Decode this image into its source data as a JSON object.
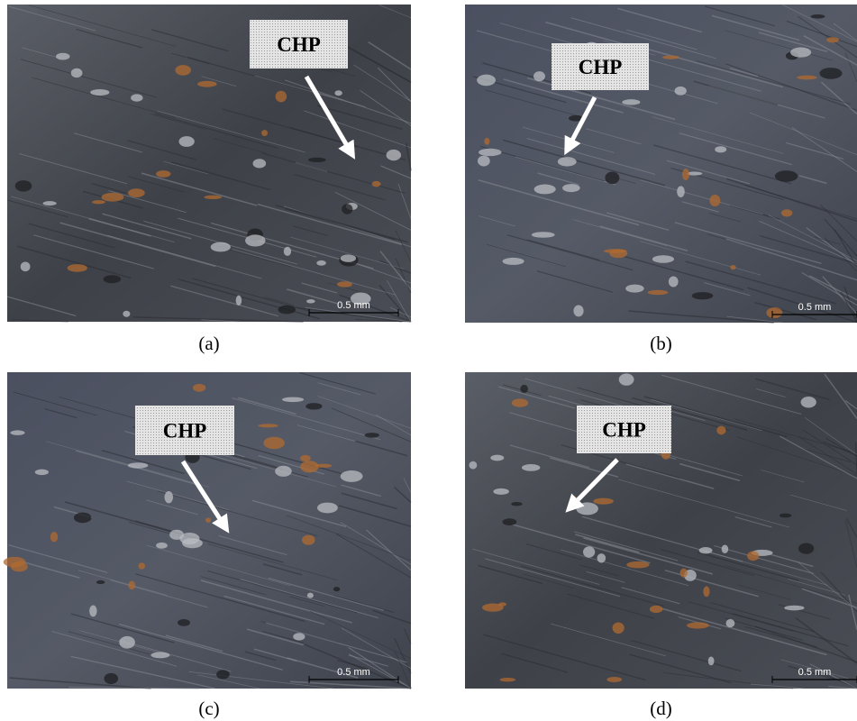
{
  "panels": [
    {
      "caption": "(a)",
      "label": "CHP",
      "scale": "0.5 mm"
    },
    {
      "caption": "(b)",
      "label": "CHP",
      "scale": "0.5 mm"
    },
    {
      "caption": "(c)",
      "label": "CHP",
      "scale": "0.5 mm"
    },
    {
      "caption": "(d)",
      "label": "CHP",
      "scale": "0.5 mm"
    }
  ]
}
